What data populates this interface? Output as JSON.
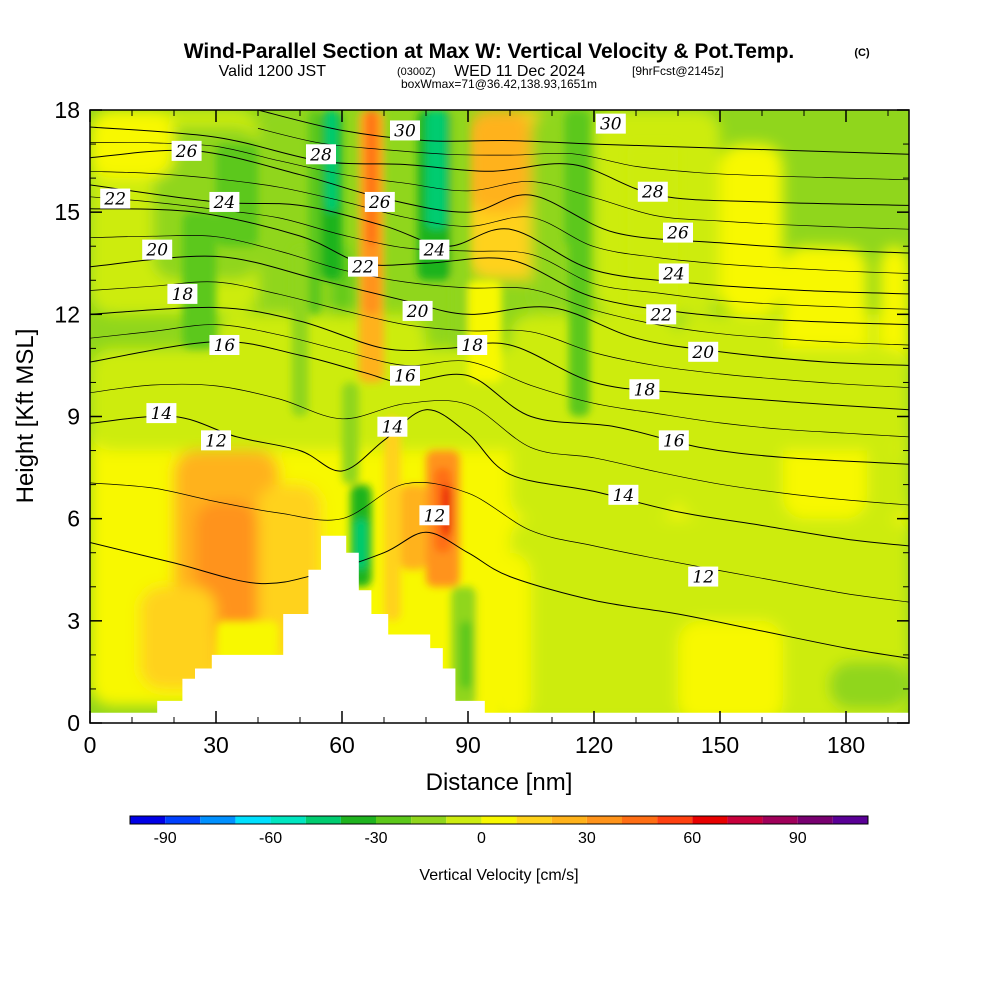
{
  "header": {
    "title": "Wind-Parallel Section at Max W: Vertical Velocity & Pot.Temp.",
    "copyright": "(C)",
    "valid_prefix": "Valid 1200 JST",
    "valid_zulu": "(0300Z)",
    "valid_date": "WED 11 Dec 2024",
    "forecast": "[9hrFcst@2145z]",
    "box_info": "boxWmax=71@36.42,138.93,1651m"
  },
  "chart_data": {
    "type": "cross-section contour",
    "title": "Wind-Parallel Section at Max W: Vertical Velocity & Pot.Temp.",
    "xlabel": "Distance [nm]",
    "ylabel": "Height [Kft MSL]",
    "xlim": [
      0,
      195
    ],
    "ylim": [
      0,
      18
    ],
    "x_ticks": [
      0,
      30,
      60,
      90,
      120,
      150,
      180
    ],
    "y_ticks": [
      0,
      3,
      6,
      9,
      12,
      15,
      18
    ],
    "x_tick_labels": [
      "0",
      "30",
      "60",
      "90",
      "120",
      "150",
      "180"
    ],
    "y_tick_labels": [
      "0",
      "3",
      "6",
      "9",
      "12",
      "15",
      "18"
    ],
    "colorbar": {
      "label": "Vertical Velocity [cm/s]",
      "min": -100,
      "max": 110,
      "step": 10,
      "ticks": [
        -90,
        -60,
        -30,
        0,
        30,
        60,
        90
      ],
      "tick_labels": [
        "-90",
        "-60",
        "-30",
        "0",
        "30",
        "60",
        "90"
      ],
      "colors": [
        "#0000e6",
        "#0040ff",
        "#0090ff",
        "#00e0ff",
        "#00e6c0",
        "#00cc70",
        "#1fb31f",
        "#5cc81a",
        "#90d61c",
        "#cdec10",
        "#f8f800",
        "#ffd21a",
        "#ffb21a",
        "#ff931a",
        "#ff6e14",
        "#ff4010",
        "#e80000",
        "#c8003c",
        "#a0005a",
        "#780070",
        "#5a0096"
      ]
    },
    "terrain_profile": [
      {
        "x": 0,
        "h": 0.3
      },
      {
        "x": 16,
        "h": 0.3
      },
      {
        "x": 16,
        "h": 0.65
      },
      {
        "x": 22,
        "h": 0.65
      },
      {
        "x": 22,
        "h": 1.3
      },
      {
        "x": 25,
        "h": 1.3
      },
      {
        "x": 25,
        "h": 1.6
      },
      {
        "x": 29,
        "h": 1.6
      },
      {
        "x": 29,
        "h": 2.0
      },
      {
        "x": 46,
        "h": 2.0
      },
      {
        "x": 46,
        "h": 3.2
      },
      {
        "x": 52,
        "h": 3.2
      },
      {
        "x": 52,
        "h": 4.5
      },
      {
        "x": 55,
        "h": 4.5
      },
      {
        "x": 55,
        "h": 5.5
      },
      {
        "x": 61,
        "h": 5.5
      },
      {
        "x": 61,
        "h": 5.0
      },
      {
        "x": 64,
        "h": 5.0
      },
      {
        "x": 64,
        "h": 3.9
      },
      {
        "x": 67,
        "h": 3.9
      },
      {
        "x": 67,
        "h": 3.2
      },
      {
        "x": 71,
        "h": 3.2
      },
      {
        "x": 71,
        "h": 2.6
      },
      {
        "x": 81,
        "h": 2.6
      },
      {
        "x": 81,
        "h": 2.2
      },
      {
        "x": 84,
        "h": 2.2
      },
      {
        "x": 84,
        "h": 1.6
      },
      {
        "x": 87,
        "h": 1.6
      },
      {
        "x": 87,
        "h": 0.65
      },
      {
        "x": 94,
        "h": 0.65
      },
      {
        "x": 94,
        "h": 0.3
      },
      {
        "x": 195,
        "h": 0.3
      }
    ],
    "theta_isolines": [
      {
        "theta": "12",
        "points": [
          [
            0,
            5.3
          ],
          [
            20,
            4.7
          ],
          [
            40,
            4.1
          ],
          [
            55,
            4.4
          ],
          [
            70,
            5.0
          ],
          [
            80,
            5.6
          ],
          [
            90,
            5.0
          ],
          [
            100,
            4.3
          ],
          [
            120,
            3.6
          ],
          [
            140,
            3.2
          ],
          [
            160,
            2.7
          ],
          [
            180,
            2.2
          ],
          [
            195,
            1.9
          ]
        ],
        "label_at": [
          [
            30,
            8.3
          ],
          [
            82,
            6.1
          ],
          [
            146,
            4.3
          ]
        ]
      },
      {
        "theta": "14",
        "points": [
          [
            0,
            8.8
          ],
          [
            20,
            9.0
          ],
          [
            35,
            8.4
          ],
          [
            50,
            8.0
          ],
          [
            60,
            7.4
          ],
          [
            70,
            8.3
          ],
          [
            80,
            9.2
          ],
          [
            90,
            8.5
          ],
          [
            100,
            7.3
          ],
          [
            120,
            6.8
          ],
          [
            140,
            6.2
          ],
          [
            160,
            5.8
          ],
          [
            180,
            5.4
          ],
          [
            195,
            5.2
          ]
        ],
        "label_at": [
          [
            17,
            9.1
          ],
          [
            72,
            8.7
          ],
          [
            127,
            6.7
          ]
        ]
      },
      {
        "theta": "16",
        "points": [
          [
            0,
            10.6
          ],
          [
            30,
            11.2
          ],
          [
            50,
            10.8
          ],
          [
            65,
            10.3
          ],
          [
            75,
            10.0
          ],
          [
            90,
            10.2
          ],
          [
            105,
            9.0
          ],
          [
            125,
            8.7
          ],
          [
            145,
            8.1
          ],
          [
            165,
            7.8
          ],
          [
            195,
            7.6
          ]
        ],
        "label_at": [
          [
            32,
            11.1
          ],
          [
            75,
            10.2
          ],
          [
            139,
            8.3
          ]
        ]
      },
      {
        "theta": "18",
        "points": [
          [
            0,
            12.0
          ],
          [
            30,
            12.2
          ],
          [
            50,
            11.8
          ],
          [
            70,
            11.0
          ],
          [
            85,
            11.0
          ],
          [
            100,
            11.1
          ],
          [
            120,
            10.0
          ],
          [
            140,
            9.7
          ],
          [
            170,
            9.4
          ],
          [
            195,
            9.2
          ]
        ],
        "label_at": [
          [
            22,
            12.6
          ],
          [
            91,
            11.1
          ],
          [
            132,
            9.8
          ]
        ]
      },
      {
        "theta": "20",
        "points": [
          [
            0,
            13.4
          ],
          [
            30,
            13.7
          ],
          [
            55,
            13.0
          ],
          [
            75,
            12.4
          ],
          [
            90,
            12.0
          ],
          [
            110,
            12.2
          ],
          [
            130,
            11.3
          ],
          [
            150,
            10.9
          ],
          [
            175,
            10.6
          ],
          [
            195,
            10.5
          ]
        ],
        "label_at": [
          [
            16,
            13.9
          ],
          [
            78,
            12.1
          ],
          [
            146,
            10.9
          ]
        ]
      },
      {
        "theta": "22",
        "points": [
          [
            0,
            15.1
          ],
          [
            25,
            15.0
          ],
          [
            50,
            14.3
          ],
          [
            65,
            13.5
          ],
          [
            80,
            13.5
          ],
          [
            100,
            13.6
          ],
          [
            120,
            12.5
          ],
          [
            145,
            12.0
          ],
          [
            170,
            11.8
          ],
          [
            195,
            11.7
          ]
        ],
        "label_at": [
          [
            6,
            15.4
          ],
          [
            65,
            13.4
          ],
          [
            136,
            12.0
          ]
        ]
      },
      {
        "theta": "24",
        "points": [
          [
            0,
            15.8
          ],
          [
            30,
            15.3
          ],
          [
            50,
            15.2
          ],
          [
            70,
            14.6
          ],
          [
            85,
            14.0
          ],
          [
            100,
            14.5
          ],
          [
            120,
            13.3
          ],
          [
            145,
            12.9
          ],
          [
            170,
            12.7
          ],
          [
            195,
            12.6
          ]
        ],
        "label_at": [
          [
            32,
            15.3
          ],
          [
            82,
            13.9
          ],
          [
            139,
            13.2
          ]
        ]
      },
      {
        "theta": "26",
        "points": [
          [
            0,
            16.6
          ],
          [
            25,
            16.8
          ],
          [
            50,
            16.1
          ],
          [
            70,
            15.4
          ],
          [
            90,
            15.0
          ],
          [
            105,
            15.5
          ],
          [
            125,
            14.4
          ],
          [
            150,
            14.1
          ],
          [
            175,
            13.9
          ],
          [
            195,
            13.8
          ]
        ],
        "label_at": [
          [
            23,
            16.8
          ],
          [
            69,
            15.3
          ],
          [
            140,
            14.4
          ]
        ]
      },
      {
        "theta": "28",
        "points": [
          [
            0,
            17.5
          ],
          [
            30,
            17.2
          ],
          [
            55,
            16.5
          ],
          [
            75,
            16.4
          ],
          [
            95,
            16.2
          ],
          [
            115,
            16.4
          ],
          [
            135,
            15.5
          ],
          [
            160,
            15.3
          ],
          [
            195,
            15.2
          ]
        ],
        "label_at": [
          [
            55,
            16.7
          ],
          [
            134,
            15.6
          ]
        ]
      },
      {
        "theta": "30",
        "points": [
          [
            40,
            18.0
          ],
          [
            60,
            17.4
          ],
          [
            80,
            17.1
          ],
          [
            100,
            17.1
          ],
          [
            120,
            17.0
          ],
          [
            145,
            16.9
          ],
          [
            170,
            16.8
          ],
          [
            195,
            16.7
          ]
        ],
        "label_at": [
          [
            75,
            17.4
          ],
          [
            124,
            17.6
          ]
        ]
      }
    ],
    "w_features": [
      {
        "x": 83,
        "y": 6.0,
        "w": 45,
        "note": "max updraft band"
      },
      {
        "x": 64,
        "y": 4.5,
        "w": -45,
        "note": "lee downdraft"
      },
      {
        "x": 57,
        "y": 16,
        "w": -40
      },
      {
        "x": 82,
        "y": 16,
        "w": -40
      },
      {
        "x": 72,
        "y": 16,
        "w": 35
      },
      {
        "x": 35,
        "y": 5,
        "w": 25
      },
      {
        "x": 95,
        "y": 16,
        "w": 25
      },
      {
        "x": 115,
        "y": 15,
        "w": -20
      },
      {
        "x": 185,
        "y": 1,
        "w": -20
      }
    ]
  }
}
